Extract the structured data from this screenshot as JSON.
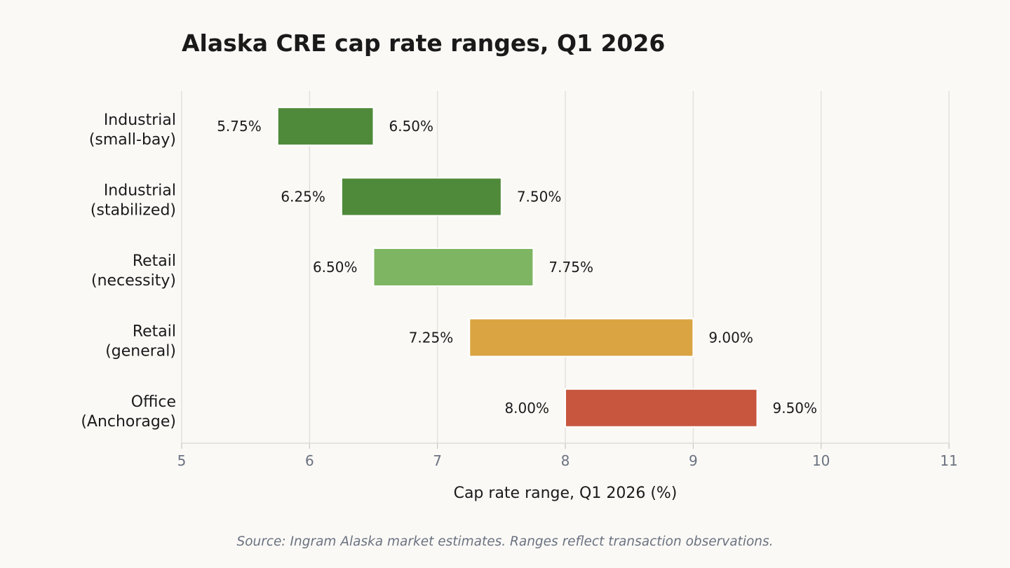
{
  "chart_data": {
    "type": "bar",
    "orientation": "horizontal-range",
    "title": "Alaska CRE cap rate ranges, Q1 2026",
    "xlabel": "Cap rate range, Q1 2026 (%)",
    "ylabel": "",
    "xlim": [
      5,
      11
    ],
    "xticks": [
      "5",
      "6",
      "7",
      "8",
      "9",
      "10",
      "11"
    ],
    "grid": "vertical",
    "categories": [
      {
        "line1": "Industrial",
        "line2": "(small-bay)"
      },
      {
        "line1": "Industrial",
        "line2": "(stabilized)"
      },
      {
        "line1": "Retail",
        "line2": "(necessity)"
      },
      {
        "line1": "Retail",
        "line2": "(general)"
      },
      {
        "line1": "Office",
        "line2": "(Anchorage)"
      }
    ],
    "ranges": [
      {
        "low": 5.75,
        "high": 6.5,
        "low_label": "5.75%",
        "high_label": "6.50%",
        "color": "#4f8a3a"
      },
      {
        "low": 6.25,
        "high": 7.5,
        "low_label": "6.25%",
        "high_label": "7.50%",
        "color": "#4f8a3a"
      },
      {
        "low": 6.5,
        "high": 7.75,
        "low_label": "6.50%",
        "high_label": "7.75%",
        "color": "#7db562"
      },
      {
        "low": 7.25,
        "high": 9.0,
        "low_label": "7.25%",
        "high_label": "9.00%",
        "color": "#d9a441"
      },
      {
        "low": 8.0,
        "high": 9.5,
        "low_label": "8.00%",
        "high_label": "9.50%",
        "color": "#c8563f"
      }
    ],
    "source": "Source: Ingram Alaska market estimates. Ranges reflect transaction observations."
  }
}
